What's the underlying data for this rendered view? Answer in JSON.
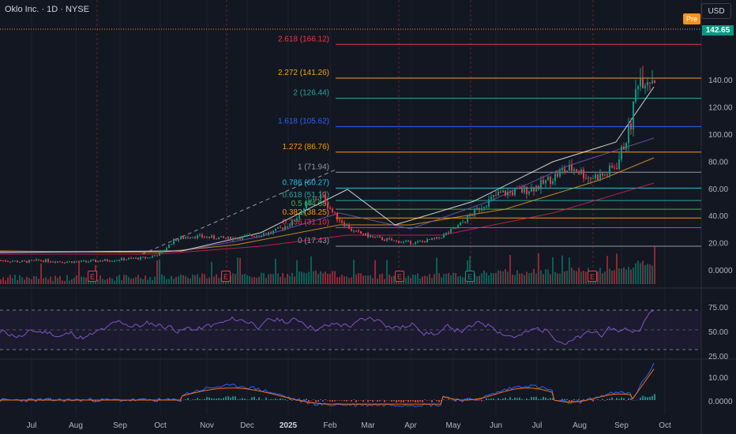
{
  "header": {
    "symbol_title": "Oklo Inc. · 1D · NYSE",
    "currency_button": "USD",
    "pre_badge": "Pre",
    "last_price": "142.65"
  },
  "fib_levels": [
    {
      "label": "2.618 (166.12)",
      "value": 166.12,
      "color": "#f23645"
    },
    {
      "label": "2.272 (141.26)",
      "value": 141.26,
      "color": "#f7a21b"
    },
    {
      "label": "2 (126.44)",
      "value": 126.44,
      "color": "#26a69a"
    },
    {
      "label": "1.618 (105.62)",
      "value": 105.62,
      "color": "#2962ff"
    },
    {
      "label": "1.272 (86.76)",
      "value": 86.76,
      "color": "#ff9800"
    },
    {
      "label": "1 (71.94)",
      "value": 71.94,
      "color": "#9598a1"
    },
    {
      "label": "0.786 (60.27)",
      "value": 60.27,
      "color": "#22c3e6"
    },
    {
      "label": "0.618 (51.12)",
      "value": 51.12,
      "color": "#26a69a"
    },
    {
      "label": "0.5 (44.68)",
      "value": 44.68,
      "color": "#4caf50"
    },
    {
      "label": "0.382 (38.25)",
      "value": 38.25,
      "color": "#ff9800"
    },
    {
      "label": "0.236 (31.10)",
      "value": 31.1,
      "color": "#f23645"
    },
    {
      "label": "0 (17.43)",
      "value": 17.43,
      "color": "#9598a1"
    }
  ],
  "price_axis": [
    "140.00",
    "120.00",
    "100.00",
    "80.00",
    "60.00",
    "40.00",
    "20.00",
    "0.0000"
  ],
  "rsi_axis": [
    "75.00",
    "50.00",
    "25.00"
  ],
  "macd_axis": [
    "10.00",
    "0.0000"
  ],
  "time_axis": [
    "Jul",
    "Aug",
    "Sep",
    "Oct",
    "Nov",
    "Dec",
    "2025",
    "Feb",
    "Mar",
    "Apr",
    "May",
    "Jun",
    "Jul",
    "Aug",
    "Sep",
    "Oct"
  ],
  "earnings_markers": [
    {
      "label": "E",
      "kind": "red"
    },
    {
      "label": "E",
      "kind": "red"
    },
    {
      "label": "E",
      "kind": "red"
    },
    {
      "label": "E",
      "kind": "green"
    },
    {
      "label": "E",
      "kind": "red"
    }
  ],
  "colors": {
    "up": "#089981",
    "down": "#f23645",
    "rsi": "#7e57c2",
    "macd": "#2962ff",
    "signal": "#ff6d00"
  },
  "chart_data": {
    "type": "line",
    "price_series": {
      "name": "OKLO",
      "x": [
        "2024-06-15",
        "2024-07-01",
        "2024-07-15",
        "2024-08-01",
        "2024-08-15",
        "2024-09-01",
        "2024-09-15",
        "2024-10-01",
        "2024-10-10",
        "2024-10-20",
        "2024-11-01",
        "2024-11-15",
        "2024-12-01",
        "2024-12-15",
        "2025-01-01",
        "2025-01-15",
        "2025-01-25",
        "2025-02-05",
        "2025-02-15",
        "2025-03-01",
        "2025-03-15",
        "2025-04-01",
        "2025-04-15",
        "2025-05-01",
        "2025-05-15",
        "2025-06-01",
        "2025-06-15",
        "2025-07-01",
        "2025-07-15",
        "2025-08-01",
        "2025-08-10",
        "2025-08-20",
        "2025-09-01",
        "2025-09-10",
        "2025-09-20",
        "2025-09-25"
      ],
      "values": [
        7,
        6,
        7,
        6,
        6,
        7,
        8,
        9,
        12,
        22,
        25,
        24,
        23,
        25,
        28,
        35,
        48,
        55,
        40,
        28,
        24,
        21,
        20,
        23,
        31,
        46,
        56,
        58,
        62,
        73,
        75,
        68,
        70,
        78,
        108,
        142
      ]
    },
    "ylim": [
      0,
      170
    ],
    "rsi_ylim": [
      0,
      100
    ],
    "macd_ylim": [
      -5,
      20
    ]
  }
}
